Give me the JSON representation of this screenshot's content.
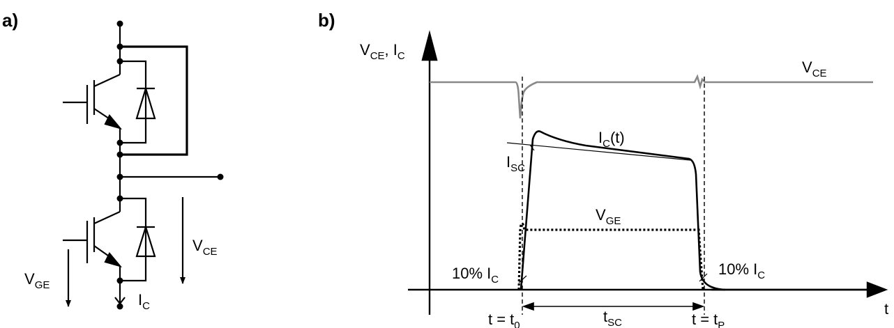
{
  "panel_a": {
    "label": "a)",
    "v_ge": {
      "main": "V",
      "sub": "GE"
    },
    "v_ce": {
      "main": "V",
      "sub": "CE"
    },
    "i_c": {
      "main": "I",
      "sub": "C"
    }
  },
  "panel_b": {
    "label": "b)",
    "y_axis": {
      "v": "V",
      "v_sub": "CE",
      "sep": ", I",
      "i_sub": "C"
    },
    "x_axis": "t",
    "vce_label": {
      "main": "V",
      "sub": "CE"
    },
    "ic_label": {
      "main": "I",
      "sub": "C",
      "suffix": "(t)"
    },
    "isc_label": {
      "main": "I",
      "sub": "SC"
    },
    "vge_label": {
      "main": "V",
      "sub": "GE"
    },
    "ten_pct_left": {
      "main": "10% I",
      "sub": "C"
    },
    "ten_pct_right": {
      "main": "10% I",
      "sub": "C"
    },
    "tsc_label": {
      "main": "t",
      "sub": "SC"
    },
    "t0_label": {
      "main": "t = t",
      "sub": "0"
    },
    "tp_label": {
      "main": "t = t",
      "sub": "P"
    },
    "colors": {
      "trace": "#000000",
      "vce_trace": "#888888"
    }
  }
}
